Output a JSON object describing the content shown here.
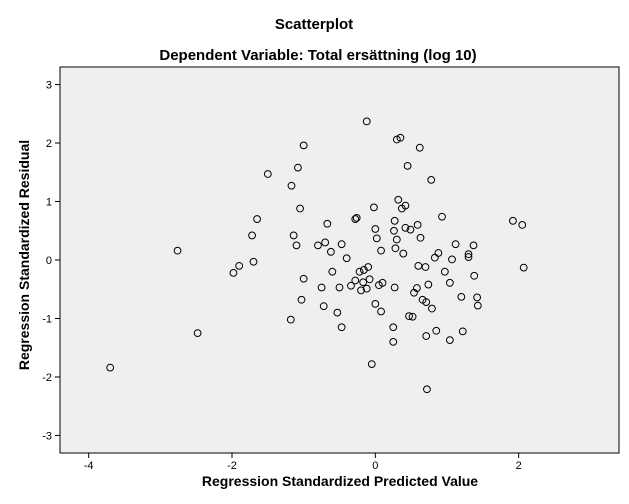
{
  "chart_data": {
    "type": "scatter",
    "title": "Scatterplot",
    "subtitle": "Dependent Variable: Total ersättning (log 10)",
    "xlabel": "Regression Standardized Predicted Value",
    "ylabel": "Regression Standardized Residual",
    "xlim": [
      -4.4,
      3.4
    ],
    "ylim": [
      -3.3,
      3.3
    ],
    "xticks": [
      -4,
      -2,
      0,
      2
    ],
    "xtick_labels": [
      "-4",
      "-2",
      "0",
      "2"
    ],
    "yticks": [
      3,
      2,
      1,
      0,
      -1,
      -2,
      -3
    ],
    "ytick_labels": [
      "3",
      "2",
      "1",
      "0",
      "-1",
      "-2",
      "-3"
    ],
    "grid": false,
    "colors": {
      "plot_background": "#efefef",
      "marker_stroke": "#000000",
      "frame": "#000000"
    },
    "points": [
      [
        -3.7,
        -1.84
      ],
      [
        -2.76,
        0.16
      ],
      [
        -2.48,
        -1.25
      ],
      [
        -1.98,
        -0.22
      ],
      [
        -1.9,
        -0.1
      ],
      [
        -1.72,
        0.42
      ],
      [
        -1.7,
        -0.03
      ],
      [
        -1.65,
        0.7
      ],
      [
        -1.5,
        1.47
      ],
      [
        -1.18,
        -1.02
      ],
      [
        -1.17,
        1.27
      ],
      [
        -1.14,
        0.42
      ],
      [
        -1.1,
        0.25
      ],
      [
        -1.08,
        1.58
      ],
      [
        -1.05,
        0.88
      ],
      [
        -1.03,
        -0.68
      ],
      [
        -1.0,
        1.96
      ],
      [
        -1.0,
        -0.32
      ],
      [
        -0.8,
        0.25
      ],
      [
        -0.75,
        -0.47
      ],
      [
        -0.72,
        -0.79
      ],
      [
        -0.7,
        0.3
      ],
      [
        -0.67,
        0.62
      ],
      [
        -0.62,
        0.14
      ],
      [
        -0.6,
        -0.2
      ],
      [
        -0.53,
        -0.9
      ],
      [
        -0.5,
        -0.47
      ],
      [
        -0.47,
        -1.15
      ],
      [
        -0.47,
        0.27
      ],
      [
        -0.4,
        0.03
      ],
      [
        -0.34,
        -0.44
      ],
      [
        -0.28,
        -0.35
      ],
      [
        -0.28,
        0.7
      ],
      [
        -0.26,
        0.72
      ],
      [
        -0.22,
        -0.2
      ],
      [
        -0.2,
        -0.52
      ],
      [
        -0.17,
        -0.38
      ],
      [
        -0.16,
        -0.17
      ],
      [
        -0.12,
        2.37
      ],
      [
        -0.12,
        -0.49
      ],
      [
        -0.1,
        -0.12
      ],
      [
        -0.08,
        -0.33
      ],
      [
        -0.05,
        -1.78
      ],
      [
        -0.02,
        0.9
      ],
      [
        0.0,
        -0.75
      ],
      [
        0.0,
        0.53
      ],
      [
        0.02,
        0.37
      ],
      [
        0.05,
        -0.43
      ],
      [
        0.08,
        0.16
      ],
      [
        0.08,
        -0.88
      ],
      [
        0.1,
        -0.39
      ],
      [
        0.25,
        -1.15
      ],
      [
        0.25,
        -1.4
      ],
      [
        0.26,
        0.5
      ],
      [
        0.27,
        0.67
      ],
      [
        0.27,
        -0.47
      ],
      [
        0.28,
        0.2
      ],
      [
        0.3,
        0.35
      ],
      [
        0.3,
        2.06
      ],
      [
        0.32,
        1.03
      ],
      [
        0.35,
        2.09
      ],
      [
        0.37,
        0.88
      ],
      [
        0.39,
        0.11
      ],
      [
        0.42,
        0.93
      ],
      [
        0.42,
        0.55
      ],
      [
        0.45,
        1.61
      ],
      [
        0.47,
        -0.96
      ],
      [
        0.49,
        0.52
      ],
      [
        0.52,
        -0.97
      ],
      [
        0.54,
        -0.56
      ],
      [
        0.58,
        -0.48
      ],
      [
        0.59,
        0.6
      ],
      [
        0.6,
        -0.1
      ],
      [
        0.62,
        1.92
      ],
      [
        0.63,
        0.38
      ],
      [
        0.66,
        -0.68
      ],
      [
        0.7,
        -0.12
      ],
      [
        0.71,
        -0.72
      ],
      [
        0.71,
        -1.3
      ],
      [
        0.74,
        -0.42
      ],
      [
        0.78,
        1.37
      ],
      [
        0.79,
        -0.83
      ],
      [
        0.83,
        0.04
      ],
      [
        0.85,
        -1.21
      ],
      [
        0.88,
        0.12
      ],
      [
        0.93,
        0.74
      ],
      [
        0.97,
        -0.2
      ],
      [
        1.04,
        -0.39
      ],
      [
        1.04,
        -1.37
      ],
      [
        1.07,
        0.01
      ],
      [
        1.12,
        0.27
      ],
      [
        1.2,
        -0.63
      ],
      [
        1.22,
        -1.22
      ],
      [
        1.3,
        0.1
      ],
      [
        1.3,
        0.05
      ],
      [
        1.37,
        0.25
      ],
      [
        1.38,
        -0.27
      ],
      [
        1.42,
        -0.64
      ],
      [
        1.43,
        -0.78
      ],
      [
        1.92,
        0.67
      ],
      [
        2.05,
        0.6
      ],
      [
        2.07,
        -0.13
      ],
      [
        0.72,
        -2.21
      ]
    ]
  }
}
